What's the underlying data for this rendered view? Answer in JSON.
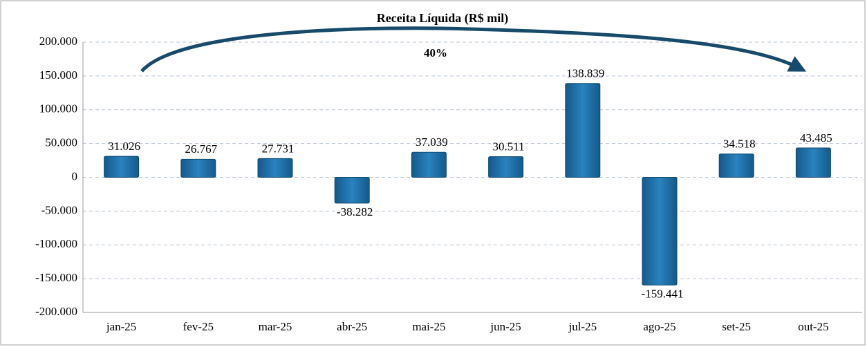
{
  "chart_data": {
    "type": "bar",
    "title": "Receita Líquida (R$ mil)",
    "annotation": "40%",
    "categories": [
      "jan-25",
      "fev-25",
      "mar-25",
      "abr-25",
      "mai-25",
      "jun-25",
      "jul-25",
      "ago-25",
      "set-25",
      "out-25"
    ],
    "values": [
      31026,
      26767,
      27731,
      -38282,
      37039,
      30511,
      138839,
      -159441,
      34518,
      43485
    ],
    "value_labels": [
      "31.026",
      "26.767",
      "27.731",
      "-38.282",
      "37.039",
      "30.511",
      "138.839",
      "-159.441",
      "34.518",
      "43.485"
    ],
    "color": "#1f6fa8",
    "ylim": [
      -200000,
      200000
    ],
    "yticks": [
      {
        "value": -200000,
        "label": "-200.000"
      },
      {
        "value": -150000,
        "label": "-150.000"
      },
      {
        "value": -100000,
        "label": "-100.000"
      },
      {
        "value": -50000,
        "label": "-50.000"
      },
      0,
      {
        "value": 50000,
        "label": "50.000"
      },
      {
        "value": 100000,
        "label": "100.000"
      },
      {
        "value": 150000,
        "label": "150.000"
      },
      {
        "value": 200000,
        "label": "200.000"
      }
    ],
    "grid": true
  }
}
